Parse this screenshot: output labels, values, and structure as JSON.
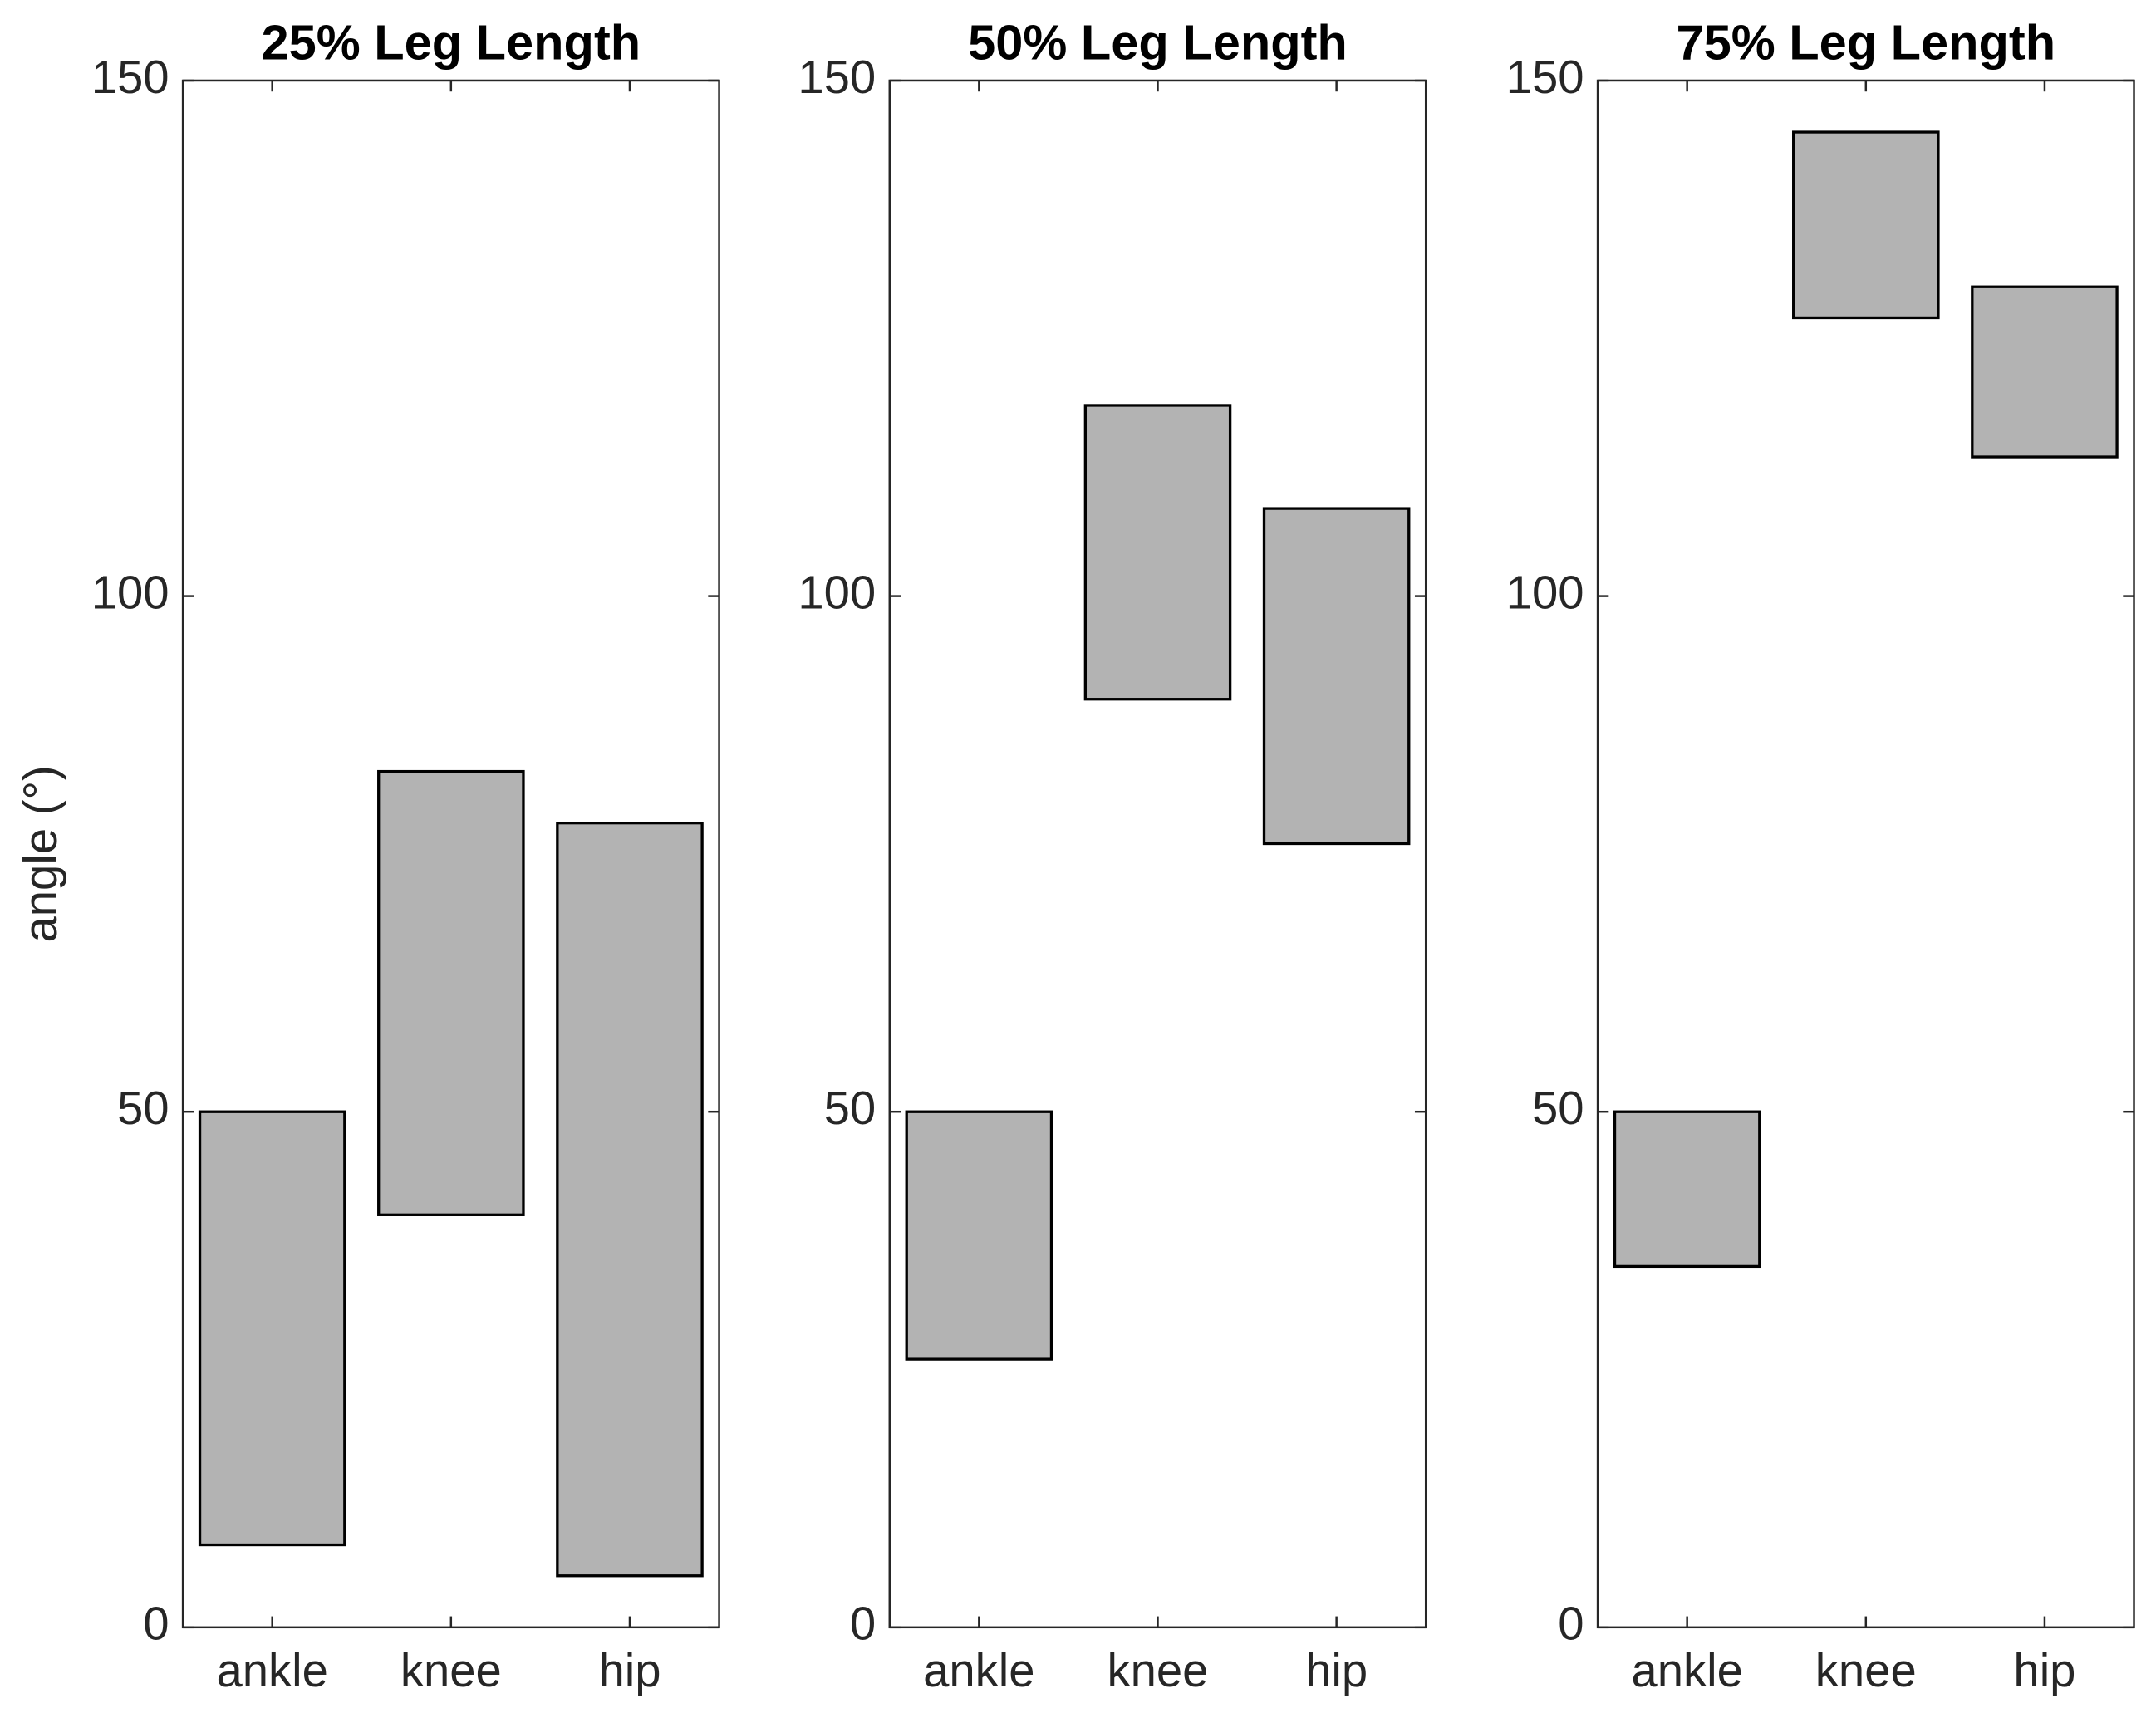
{
  "chart_data": [
    {
      "type": "floating_bar",
      "title": "25% Leg Length",
      "ylabel": "angle (°)",
      "categories": [
        "ankle",
        "knee",
        "hip"
      ],
      "low": [
        8,
        40,
        5
      ],
      "high": [
        50,
        83,
        78
      ],
      "color": "#b3b3b3",
      "ylim": [
        0,
        150
      ],
      "yticks": [
        0,
        50,
        100,
        150
      ]
    },
    {
      "type": "floating_bar",
      "title": "50% Leg Length",
      "categories": [
        "ankle",
        "knee",
        "hip"
      ],
      "low": [
        26,
        90,
        76
      ],
      "high": [
        50,
        118.5,
        108.5
      ],
      "color": "#b3b3b3",
      "ylim": [
        0,
        150
      ],
      "yticks": [
        0,
        50,
        100,
        150
      ]
    },
    {
      "type": "floating_bar",
      "title": "75% Leg Length",
      "categories": [
        "ankle",
        "knee",
        "hip"
      ],
      "low": [
        35,
        127,
        113.5
      ],
      "high": [
        50,
        145,
        130
      ],
      "color": "#b3b3b3",
      "ylim": [
        0,
        150
      ],
      "yticks": [
        0,
        50,
        100,
        150
      ]
    }
  ]
}
